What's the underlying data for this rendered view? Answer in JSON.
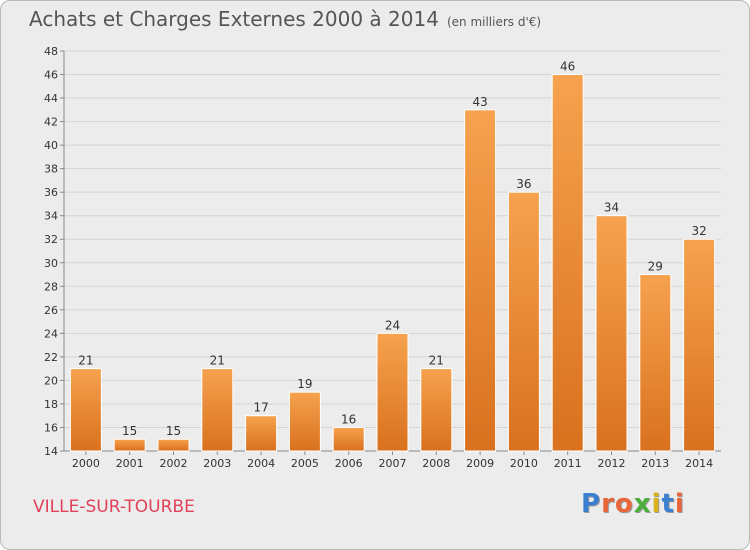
{
  "header": {
    "title": "Achats et Charges Externes 2000 à 2014",
    "unit": "(en milliers d'€)"
  },
  "footer": {
    "city": "VILLE-SUR-TOURBE",
    "logo_letters": [
      {
        "ch": "P",
        "color": "#3a7fd0"
      },
      {
        "ch": "r",
        "color": "#e8663a"
      },
      {
        "ch": "o",
        "color": "#e8663a"
      },
      {
        "ch": "x",
        "color": "#4caf3c"
      },
      {
        "ch": "i",
        "color": "#d9b21c"
      },
      {
        "ch": "t",
        "color": "#3a7fd0"
      },
      {
        "ch": "i",
        "color": "#e8663a"
      }
    ]
  },
  "chart_data": {
    "type": "bar",
    "categories": [
      "2000",
      "2001",
      "2002",
      "2003",
      "2004",
      "2005",
      "2006",
      "2007",
      "2008",
      "2009",
      "2010",
      "2011",
      "2012",
      "2013",
      "2014"
    ],
    "values": [
      21,
      15,
      15,
      21,
      17,
      19,
      16,
      24,
      21,
      43,
      36,
      46,
      34,
      29,
      32
    ],
    "title": "Achats et Charges Externes 2000 à 2014",
    "ylim": [
      14,
      48
    ],
    "yticks": [
      14,
      16,
      18,
      20,
      22,
      24,
      26,
      28,
      30,
      32,
      34,
      36,
      38,
      40,
      42,
      44,
      46,
      48
    ],
    "grid": true,
    "bar_color": "#f0943a"
  }
}
